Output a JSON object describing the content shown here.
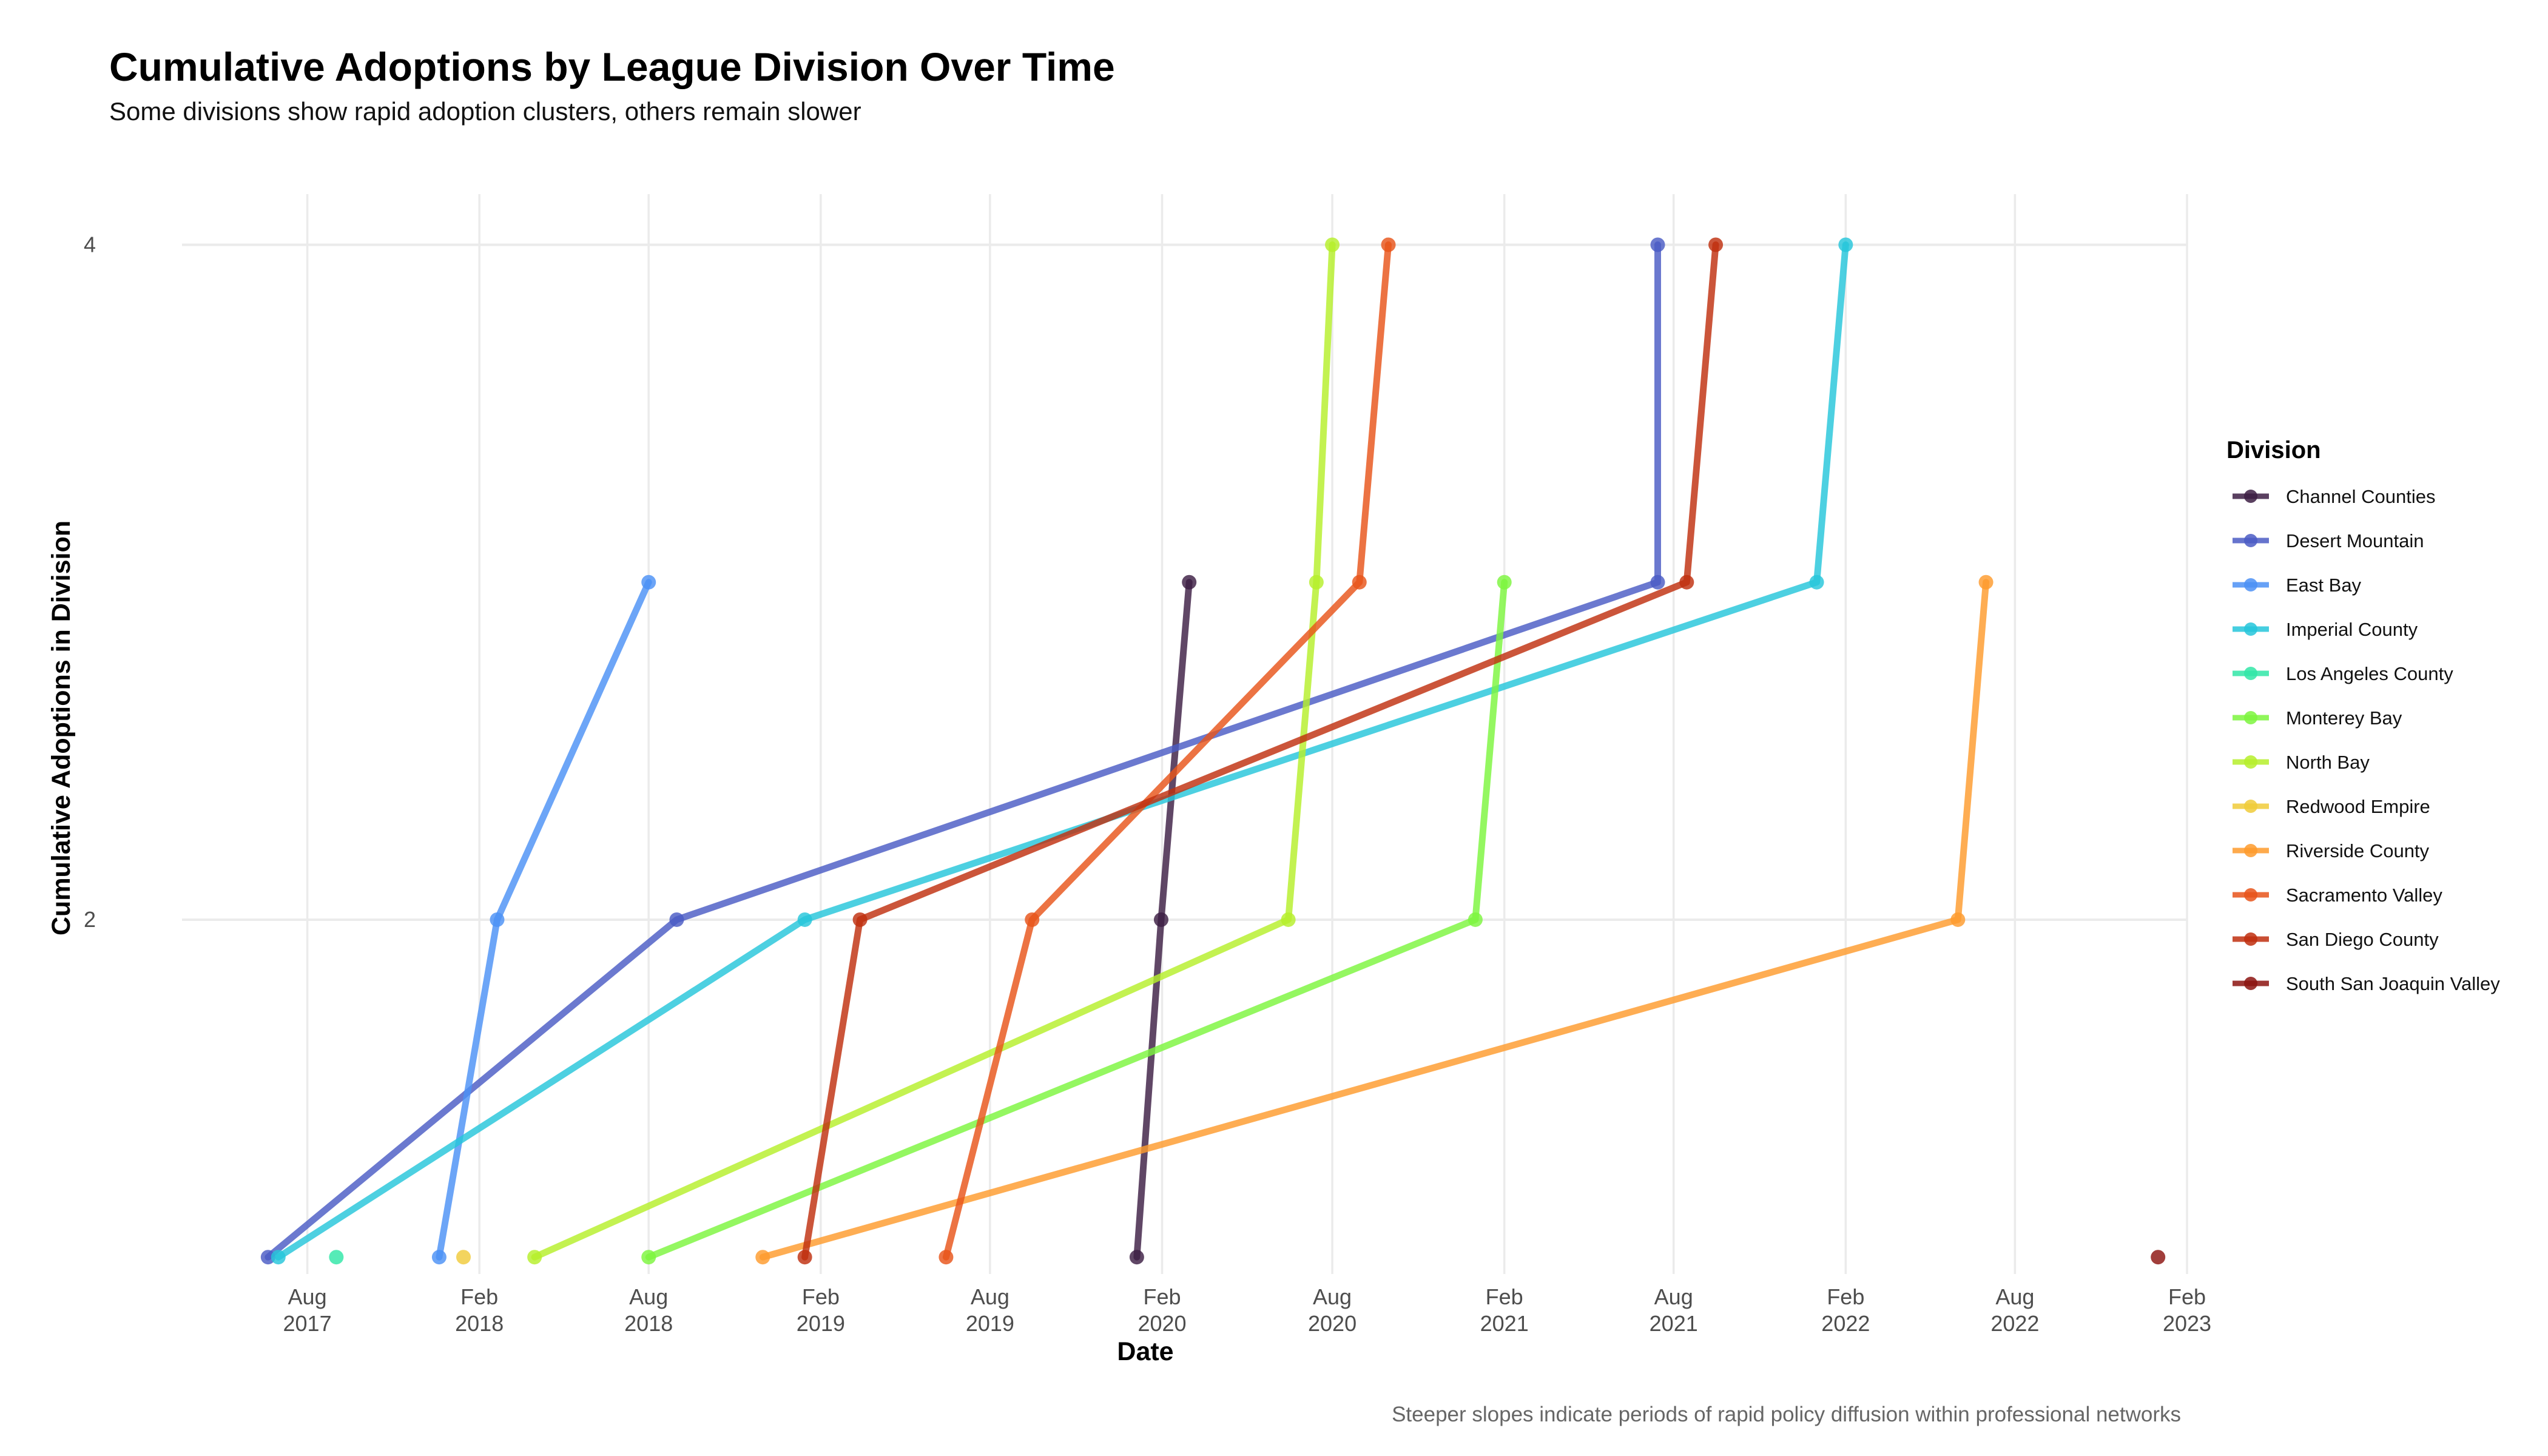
{
  "chart_data": {
    "type": "line",
    "title": "Cumulative Adoptions by League Division Over Time",
    "subtitle": "Some divisions show rapid adoption clusters, others remain slower",
    "caption": "Steeper slopes indicate periods of rapid policy diffusion within professional networks",
    "xlabel": "Date",
    "ylabel": "Cumulative Adoptions in Division",
    "xlim": [
      "2017-03-20",
      "2023-02-01"
    ],
    "ylim": [
      0.95,
      4.15
    ],
    "x_ticks": [
      {
        "date": "2017-08-01",
        "line1": "Aug",
        "line2": "2017"
      },
      {
        "date": "2018-02-01",
        "line1": "Feb",
        "line2": "2018"
      },
      {
        "date": "2018-08-01",
        "line1": "Aug",
        "line2": "2018"
      },
      {
        "date": "2019-02-01",
        "line1": "Feb",
        "line2": "2019"
      },
      {
        "date": "2019-08-01",
        "line1": "Aug",
        "line2": "2019"
      },
      {
        "date": "2020-02-01",
        "line1": "Feb",
        "line2": "2020"
      },
      {
        "date": "2020-08-01",
        "line1": "Aug",
        "line2": "2020"
      },
      {
        "date": "2021-02-01",
        "line1": "Feb",
        "line2": "2021"
      },
      {
        "date": "2021-08-01",
        "line1": "Aug",
        "line2": "2021"
      },
      {
        "date": "2022-02-01",
        "line1": "Feb",
        "line2": "2022"
      },
      {
        "date": "2022-08-01",
        "line1": "Aug",
        "line2": "2022"
      },
      {
        "date": "2023-02-01",
        "line1": "Feb",
        "line2": "2023"
      }
    ],
    "y_ticks": [
      2,
      4
    ],
    "grid": true,
    "legend_title": "Division",
    "legend_position": "right",
    "series": [
      {
        "name": "Channel Counties",
        "color": "#3d1f44",
        "points": [
          [
            "2020-01-05",
            1
          ],
          [
            "2020-01-31",
            2
          ],
          [
            "2020-03-01",
            3
          ]
        ]
      },
      {
        "name": "Desert Mountain",
        "color": "#4b5cc4",
        "points": [
          [
            "2017-06-20",
            1
          ],
          [
            "2018-08-31",
            2
          ],
          [
            "2021-07-15",
            3
          ],
          [
            "2021-07-15",
            4
          ]
        ]
      },
      {
        "name": "East Bay",
        "color": "#4c91f5",
        "points": [
          [
            "2017-12-20",
            1
          ],
          [
            "2018-02-20",
            2
          ],
          [
            "2018-08-01",
            3
          ]
        ]
      },
      {
        "name": "Imperial County",
        "color": "#26c6da",
        "points": [
          [
            "2017-07-01",
            1
          ],
          [
            "2019-01-15",
            2
          ],
          [
            "2022-01-01",
            3
          ],
          [
            "2022-02-01",
            4
          ]
        ]
      },
      {
        "name": "Los Angeles County",
        "color": "#31e6a7",
        "points": [
          [
            "2017-09-01",
            1
          ]
        ]
      },
      {
        "name": "Monterey Bay",
        "color": "#7cf53e",
        "points": [
          [
            "2018-08-01",
            1
          ],
          [
            "2021-01-01",
            2
          ],
          [
            "2021-02-01",
            3
          ]
        ]
      },
      {
        "name": "North Bay",
        "color": "#b6ef2b",
        "points": [
          [
            "2018-04-01",
            1
          ],
          [
            "2020-06-15",
            2
          ],
          [
            "2020-07-15",
            3
          ],
          [
            "2020-08-01",
            4
          ]
        ]
      },
      {
        "name": "Redwood Empire",
        "color": "#f0cb3a",
        "points": [
          [
            "2018-01-15",
            1
          ]
        ]
      },
      {
        "name": "Riverside County",
        "color": "#fe9b2d",
        "points": [
          [
            "2018-12-01",
            1
          ],
          [
            "2022-06-01",
            2
          ],
          [
            "2022-07-01",
            3
          ]
        ]
      },
      {
        "name": "Sacramento Valley",
        "color": "#e8541a",
        "points": [
          [
            "2019-06-15",
            1
          ],
          [
            "2019-09-15",
            2
          ],
          [
            "2020-08-30",
            3
          ],
          [
            "2020-09-30",
            4
          ]
        ]
      },
      {
        "name": "San Diego County",
        "color": "#c02f0f",
        "points": [
          [
            "2019-01-15",
            1
          ],
          [
            "2019-03-15",
            2
          ],
          [
            "2021-08-15",
            3
          ],
          [
            "2021-09-15",
            4
          ]
        ]
      },
      {
        "name": "South San Joaquin Valley",
        "color": "#8c1410",
        "points": [
          [
            "2023-01-01",
            1
          ]
        ]
      }
    ]
  }
}
